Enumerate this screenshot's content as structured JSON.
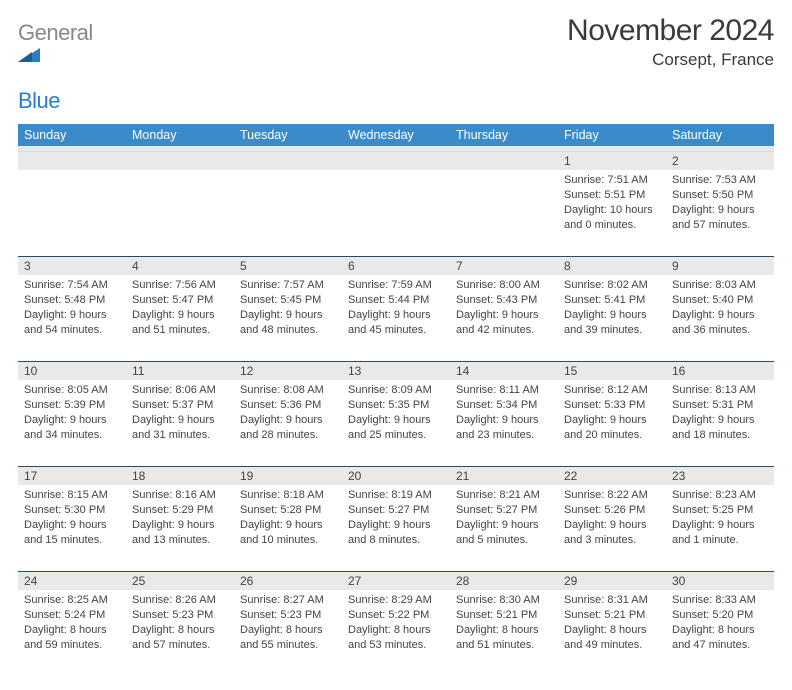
{
  "logo": {
    "text_gray": "General",
    "text_blue": "Blue"
  },
  "title": "November 2024",
  "location": "Corsept, France",
  "colors": {
    "header_bg": "#3b8bc9",
    "strip_bg": "#e9e9e9",
    "strip_border": "#2f4a66",
    "page_bg": "#ffffff",
    "text": "#444444"
  },
  "dow": [
    "Sunday",
    "Monday",
    "Tuesday",
    "Wednesday",
    "Thursday",
    "Friday",
    "Saturday"
  ],
  "weeks": [
    [
      {
        "n": "",
        "sr": "",
        "ss": "",
        "dl1": "",
        "dl2": ""
      },
      {
        "n": "",
        "sr": "",
        "ss": "",
        "dl1": "",
        "dl2": ""
      },
      {
        "n": "",
        "sr": "",
        "ss": "",
        "dl1": "",
        "dl2": ""
      },
      {
        "n": "",
        "sr": "",
        "ss": "",
        "dl1": "",
        "dl2": ""
      },
      {
        "n": "",
        "sr": "",
        "ss": "",
        "dl1": "",
        "dl2": ""
      },
      {
        "n": "1",
        "sr": "Sunrise: 7:51 AM",
        "ss": "Sunset: 5:51 PM",
        "dl1": "Daylight: 10 hours",
        "dl2": "and 0 minutes."
      },
      {
        "n": "2",
        "sr": "Sunrise: 7:53 AM",
        "ss": "Sunset: 5:50 PM",
        "dl1": "Daylight: 9 hours",
        "dl2": "and 57 minutes."
      }
    ],
    [
      {
        "n": "3",
        "sr": "Sunrise: 7:54 AM",
        "ss": "Sunset: 5:48 PM",
        "dl1": "Daylight: 9 hours",
        "dl2": "and 54 minutes."
      },
      {
        "n": "4",
        "sr": "Sunrise: 7:56 AM",
        "ss": "Sunset: 5:47 PM",
        "dl1": "Daylight: 9 hours",
        "dl2": "and 51 minutes."
      },
      {
        "n": "5",
        "sr": "Sunrise: 7:57 AM",
        "ss": "Sunset: 5:45 PM",
        "dl1": "Daylight: 9 hours",
        "dl2": "and 48 minutes."
      },
      {
        "n": "6",
        "sr": "Sunrise: 7:59 AM",
        "ss": "Sunset: 5:44 PM",
        "dl1": "Daylight: 9 hours",
        "dl2": "and 45 minutes."
      },
      {
        "n": "7",
        "sr": "Sunrise: 8:00 AM",
        "ss": "Sunset: 5:43 PM",
        "dl1": "Daylight: 9 hours",
        "dl2": "and 42 minutes."
      },
      {
        "n": "8",
        "sr": "Sunrise: 8:02 AM",
        "ss": "Sunset: 5:41 PM",
        "dl1": "Daylight: 9 hours",
        "dl2": "and 39 minutes."
      },
      {
        "n": "9",
        "sr": "Sunrise: 8:03 AM",
        "ss": "Sunset: 5:40 PM",
        "dl1": "Daylight: 9 hours",
        "dl2": "and 36 minutes."
      }
    ],
    [
      {
        "n": "10",
        "sr": "Sunrise: 8:05 AM",
        "ss": "Sunset: 5:39 PM",
        "dl1": "Daylight: 9 hours",
        "dl2": "and 34 minutes."
      },
      {
        "n": "11",
        "sr": "Sunrise: 8:06 AM",
        "ss": "Sunset: 5:37 PM",
        "dl1": "Daylight: 9 hours",
        "dl2": "and 31 minutes."
      },
      {
        "n": "12",
        "sr": "Sunrise: 8:08 AM",
        "ss": "Sunset: 5:36 PM",
        "dl1": "Daylight: 9 hours",
        "dl2": "and 28 minutes."
      },
      {
        "n": "13",
        "sr": "Sunrise: 8:09 AM",
        "ss": "Sunset: 5:35 PM",
        "dl1": "Daylight: 9 hours",
        "dl2": "and 25 minutes."
      },
      {
        "n": "14",
        "sr": "Sunrise: 8:11 AM",
        "ss": "Sunset: 5:34 PM",
        "dl1": "Daylight: 9 hours",
        "dl2": "and 23 minutes."
      },
      {
        "n": "15",
        "sr": "Sunrise: 8:12 AM",
        "ss": "Sunset: 5:33 PM",
        "dl1": "Daylight: 9 hours",
        "dl2": "and 20 minutes."
      },
      {
        "n": "16",
        "sr": "Sunrise: 8:13 AM",
        "ss": "Sunset: 5:31 PM",
        "dl1": "Daylight: 9 hours",
        "dl2": "and 18 minutes."
      }
    ],
    [
      {
        "n": "17",
        "sr": "Sunrise: 8:15 AM",
        "ss": "Sunset: 5:30 PM",
        "dl1": "Daylight: 9 hours",
        "dl2": "and 15 minutes."
      },
      {
        "n": "18",
        "sr": "Sunrise: 8:16 AM",
        "ss": "Sunset: 5:29 PM",
        "dl1": "Daylight: 9 hours",
        "dl2": "and 13 minutes."
      },
      {
        "n": "19",
        "sr": "Sunrise: 8:18 AM",
        "ss": "Sunset: 5:28 PM",
        "dl1": "Daylight: 9 hours",
        "dl2": "and 10 minutes."
      },
      {
        "n": "20",
        "sr": "Sunrise: 8:19 AM",
        "ss": "Sunset: 5:27 PM",
        "dl1": "Daylight: 9 hours",
        "dl2": "and 8 minutes."
      },
      {
        "n": "21",
        "sr": "Sunrise: 8:21 AM",
        "ss": "Sunset: 5:27 PM",
        "dl1": "Daylight: 9 hours",
        "dl2": "and 5 minutes."
      },
      {
        "n": "22",
        "sr": "Sunrise: 8:22 AM",
        "ss": "Sunset: 5:26 PM",
        "dl1": "Daylight: 9 hours",
        "dl2": "and 3 minutes."
      },
      {
        "n": "23",
        "sr": "Sunrise: 8:23 AM",
        "ss": "Sunset: 5:25 PM",
        "dl1": "Daylight: 9 hours",
        "dl2": "and 1 minute."
      }
    ],
    [
      {
        "n": "24",
        "sr": "Sunrise: 8:25 AM",
        "ss": "Sunset: 5:24 PM",
        "dl1": "Daylight: 8 hours",
        "dl2": "and 59 minutes."
      },
      {
        "n": "25",
        "sr": "Sunrise: 8:26 AM",
        "ss": "Sunset: 5:23 PM",
        "dl1": "Daylight: 8 hours",
        "dl2": "and 57 minutes."
      },
      {
        "n": "26",
        "sr": "Sunrise: 8:27 AM",
        "ss": "Sunset: 5:23 PM",
        "dl1": "Daylight: 8 hours",
        "dl2": "and 55 minutes."
      },
      {
        "n": "27",
        "sr": "Sunrise: 8:29 AM",
        "ss": "Sunset: 5:22 PM",
        "dl1": "Daylight: 8 hours",
        "dl2": "and 53 minutes."
      },
      {
        "n": "28",
        "sr": "Sunrise: 8:30 AM",
        "ss": "Sunset: 5:21 PM",
        "dl1": "Daylight: 8 hours",
        "dl2": "and 51 minutes."
      },
      {
        "n": "29",
        "sr": "Sunrise: 8:31 AM",
        "ss": "Sunset: 5:21 PM",
        "dl1": "Daylight: 8 hours",
        "dl2": "and 49 minutes."
      },
      {
        "n": "30",
        "sr": "Sunrise: 8:33 AM",
        "ss": "Sunset: 5:20 PM",
        "dl1": "Daylight: 8 hours",
        "dl2": "and 47 minutes."
      }
    ]
  ]
}
